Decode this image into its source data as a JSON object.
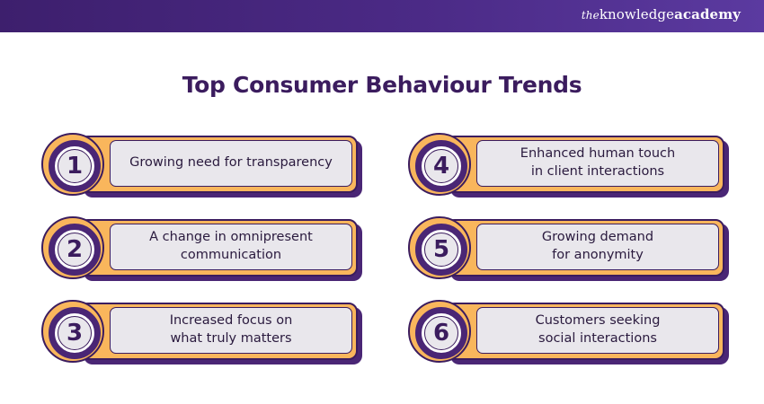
{
  "brand": {
    "the": "the",
    "knowledge": "knowledge",
    "academy": "academy"
  },
  "title": "Top Consumer Behaviour Trends",
  "colors": {
    "header": "#4b2a86",
    "title": "#3b1c5e",
    "accent_orange": "#f9b65c",
    "purple": "#4a2675",
    "text_box": "#e9e7ec"
  },
  "trends": [
    {
      "number": "1",
      "line1": "Growing need for transparency",
      "line2": ""
    },
    {
      "number": "2",
      "line1": "A change in omnipresent",
      "line2": "communication"
    },
    {
      "number": "3",
      "line1": "Increased focus on",
      "line2": "what truly matters"
    },
    {
      "number": "4",
      "line1": "Enhanced human touch",
      "line2": "in client interactions"
    },
    {
      "number": "5",
      "line1": "Growing demand",
      "line2": "for anonymity"
    },
    {
      "number": "6",
      "line1": "Customers seeking",
      "line2": "social interactions"
    }
  ]
}
